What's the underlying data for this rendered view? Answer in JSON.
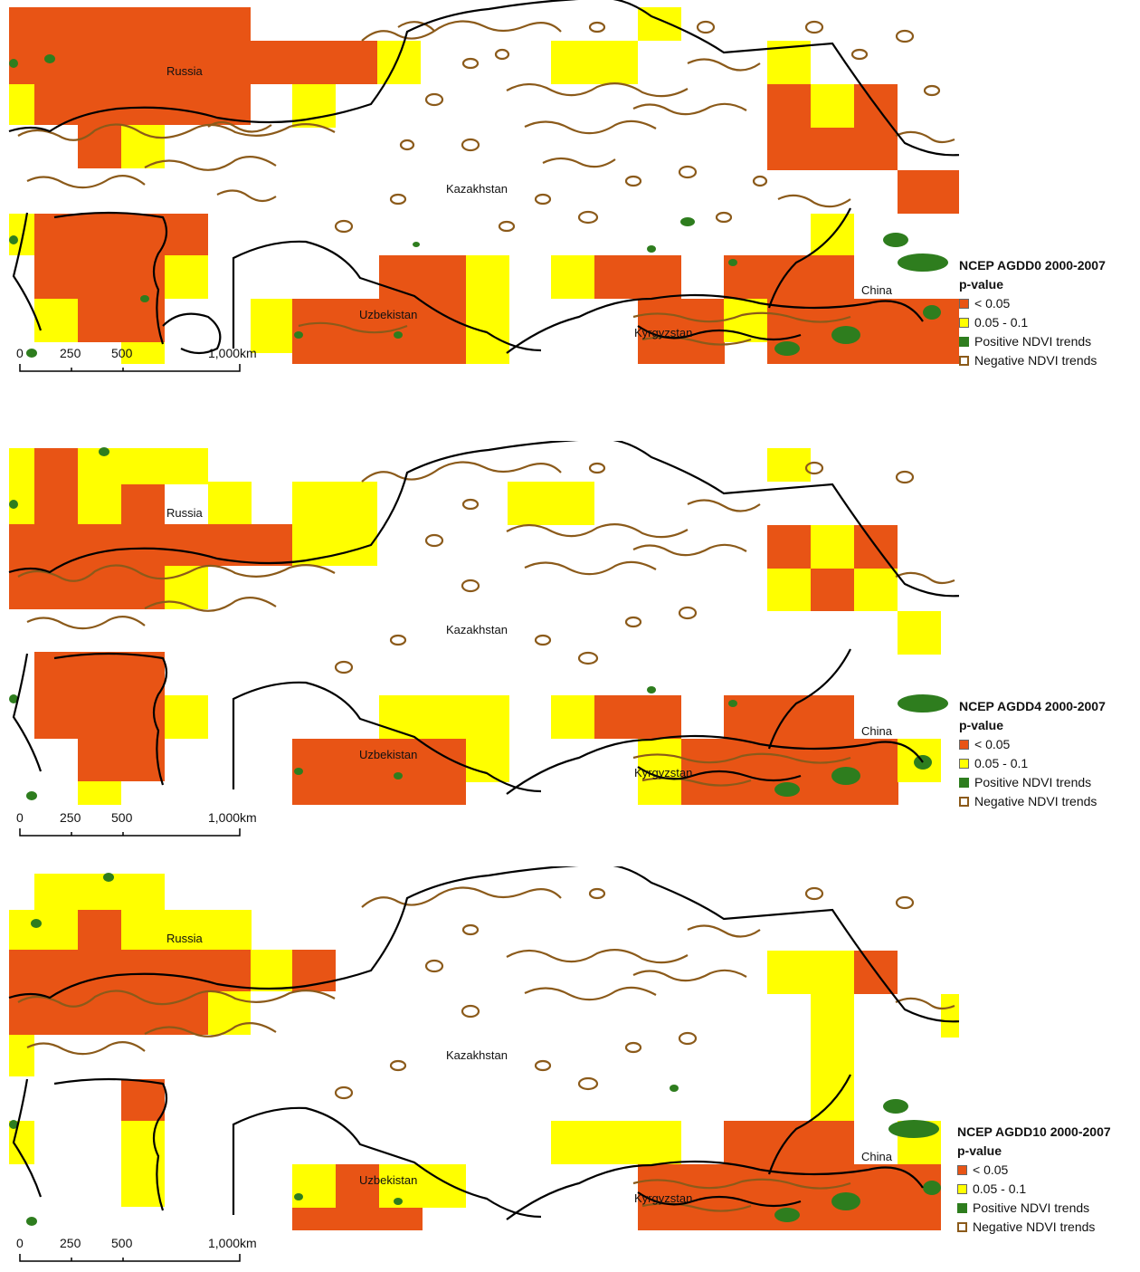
{
  "place_labels": {
    "russia": "Russia",
    "kazakhstan": "Kazakhstan",
    "uzbekistan": "Uzbekistan",
    "kyrgyzstan": "Kyrgyzstan",
    "china": "China"
  },
  "legend": {
    "subtitle": "p-value",
    "sig_high": "< 0.05",
    "sig_low": "0.05 - 0.1",
    "positive": "Positive NDVI trends",
    "negative": "Negative NDVI trends"
  },
  "scale": {
    "t0": "0",
    "t1": "250",
    "t2": "500",
    "t3": "1,000km"
  },
  "panels": [
    {
      "title": "NCEP AGDD0 2000-2007"
    },
    {
      "title": "NCEP AGDD4 2000-2007"
    },
    {
      "title": "NCEP AGDD10 2000-2007"
    }
  ],
  "colors": {
    "sig_high": "#e85415",
    "sig_low": "#ffff00",
    "positive": "#2e7d1e",
    "negative": "#8b5a1a",
    "border": "#000000"
  }
}
